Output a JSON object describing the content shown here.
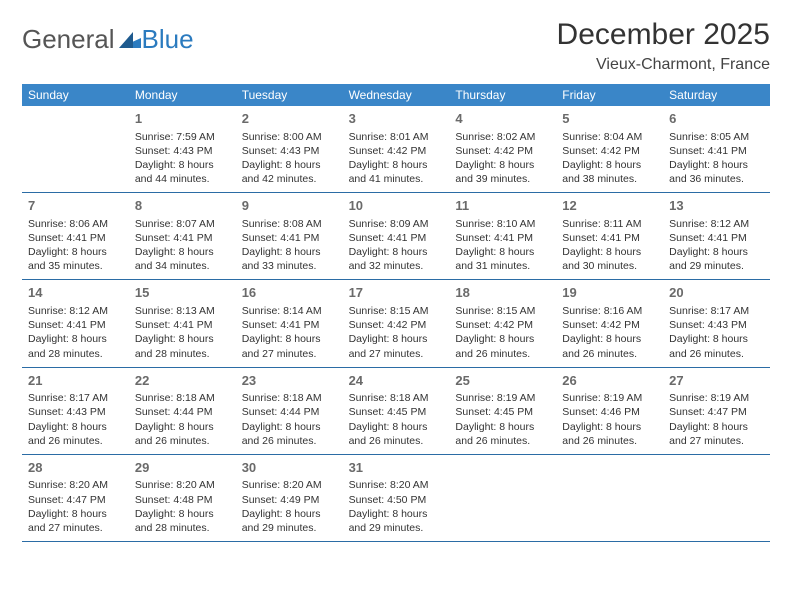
{
  "logo": {
    "text1": "General",
    "text2": "Blue"
  },
  "header": {
    "month": "December 2025",
    "location": "Vieux-Charmont, France"
  },
  "colors": {
    "header_bg": "#3a86c8",
    "header_text": "#ffffff",
    "week_border": "#2b6ca5",
    "daynum": "#6a6a6a",
    "body_text": "#333333",
    "logo_gray": "#555555",
    "logo_blue": "#2b7bbf"
  },
  "dayNames": [
    "Sunday",
    "Monday",
    "Tuesday",
    "Wednesday",
    "Thursday",
    "Friday",
    "Saturday"
  ],
  "weeks": [
    [
      null,
      {
        "n": "1",
        "l1": "Sunrise: 7:59 AM",
        "l2": "Sunset: 4:43 PM",
        "l3": "Daylight: 8 hours",
        "l4": "and 44 minutes."
      },
      {
        "n": "2",
        "l1": "Sunrise: 8:00 AM",
        "l2": "Sunset: 4:43 PM",
        "l3": "Daylight: 8 hours",
        "l4": "and 42 minutes."
      },
      {
        "n": "3",
        "l1": "Sunrise: 8:01 AM",
        "l2": "Sunset: 4:42 PM",
        "l3": "Daylight: 8 hours",
        "l4": "and 41 minutes."
      },
      {
        "n": "4",
        "l1": "Sunrise: 8:02 AM",
        "l2": "Sunset: 4:42 PM",
        "l3": "Daylight: 8 hours",
        "l4": "and 39 minutes."
      },
      {
        "n": "5",
        "l1": "Sunrise: 8:04 AM",
        "l2": "Sunset: 4:42 PM",
        "l3": "Daylight: 8 hours",
        "l4": "and 38 minutes."
      },
      {
        "n": "6",
        "l1": "Sunrise: 8:05 AM",
        "l2": "Sunset: 4:41 PM",
        "l3": "Daylight: 8 hours",
        "l4": "and 36 minutes."
      }
    ],
    [
      {
        "n": "7",
        "l1": "Sunrise: 8:06 AM",
        "l2": "Sunset: 4:41 PM",
        "l3": "Daylight: 8 hours",
        "l4": "and 35 minutes."
      },
      {
        "n": "8",
        "l1": "Sunrise: 8:07 AM",
        "l2": "Sunset: 4:41 PM",
        "l3": "Daylight: 8 hours",
        "l4": "and 34 minutes."
      },
      {
        "n": "9",
        "l1": "Sunrise: 8:08 AM",
        "l2": "Sunset: 4:41 PM",
        "l3": "Daylight: 8 hours",
        "l4": "and 33 minutes."
      },
      {
        "n": "10",
        "l1": "Sunrise: 8:09 AM",
        "l2": "Sunset: 4:41 PM",
        "l3": "Daylight: 8 hours",
        "l4": "and 32 minutes."
      },
      {
        "n": "11",
        "l1": "Sunrise: 8:10 AM",
        "l2": "Sunset: 4:41 PM",
        "l3": "Daylight: 8 hours",
        "l4": "and 31 minutes."
      },
      {
        "n": "12",
        "l1": "Sunrise: 8:11 AM",
        "l2": "Sunset: 4:41 PM",
        "l3": "Daylight: 8 hours",
        "l4": "and 30 minutes."
      },
      {
        "n": "13",
        "l1": "Sunrise: 8:12 AM",
        "l2": "Sunset: 4:41 PM",
        "l3": "Daylight: 8 hours",
        "l4": "and 29 minutes."
      }
    ],
    [
      {
        "n": "14",
        "l1": "Sunrise: 8:12 AM",
        "l2": "Sunset: 4:41 PM",
        "l3": "Daylight: 8 hours",
        "l4": "and 28 minutes."
      },
      {
        "n": "15",
        "l1": "Sunrise: 8:13 AM",
        "l2": "Sunset: 4:41 PM",
        "l3": "Daylight: 8 hours",
        "l4": "and 28 minutes."
      },
      {
        "n": "16",
        "l1": "Sunrise: 8:14 AM",
        "l2": "Sunset: 4:41 PM",
        "l3": "Daylight: 8 hours",
        "l4": "and 27 minutes."
      },
      {
        "n": "17",
        "l1": "Sunrise: 8:15 AM",
        "l2": "Sunset: 4:42 PM",
        "l3": "Daylight: 8 hours",
        "l4": "and 27 minutes."
      },
      {
        "n": "18",
        "l1": "Sunrise: 8:15 AM",
        "l2": "Sunset: 4:42 PM",
        "l3": "Daylight: 8 hours",
        "l4": "and 26 minutes."
      },
      {
        "n": "19",
        "l1": "Sunrise: 8:16 AM",
        "l2": "Sunset: 4:42 PM",
        "l3": "Daylight: 8 hours",
        "l4": "and 26 minutes."
      },
      {
        "n": "20",
        "l1": "Sunrise: 8:17 AM",
        "l2": "Sunset: 4:43 PM",
        "l3": "Daylight: 8 hours",
        "l4": "and 26 minutes."
      }
    ],
    [
      {
        "n": "21",
        "l1": "Sunrise: 8:17 AM",
        "l2": "Sunset: 4:43 PM",
        "l3": "Daylight: 8 hours",
        "l4": "and 26 minutes."
      },
      {
        "n": "22",
        "l1": "Sunrise: 8:18 AM",
        "l2": "Sunset: 4:44 PM",
        "l3": "Daylight: 8 hours",
        "l4": "and 26 minutes."
      },
      {
        "n": "23",
        "l1": "Sunrise: 8:18 AM",
        "l2": "Sunset: 4:44 PM",
        "l3": "Daylight: 8 hours",
        "l4": "and 26 minutes."
      },
      {
        "n": "24",
        "l1": "Sunrise: 8:18 AM",
        "l2": "Sunset: 4:45 PM",
        "l3": "Daylight: 8 hours",
        "l4": "and 26 minutes."
      },
      {
        "n": "25",
        "l1": "Sunrise: 8:19 AM",
        "l2": "Sunset: 4:45 PM",
        "l3": "Daylight: 8 hours",
        "l4": "and 26 minutes."
      },
      {
        "n": "26",
        "l1": "Sunrise: 8:19 AM",
        "l2": "Sunset: 4:46 PM",
        "l3": "Daylight: 8 hours",
        "l4": "and 26 minutes."
      },
      {
        "n": "27",
        "l1": "Sunrise: 8:19 AM",
        "l2": "Sunset: 4:47 PM",
        "l3": "Daylight: 8 hours",
        "l4": "and 27 minutes."
      }
    ],
    [
      {
        "n": "28",
        "l1": "Sunrise: 8:20 AM",
        "l2": "Sunset: 4:47 PM",
        "l3": "Daylight: 8 hours",
        "l4": "and 27 minutes."
      },
      {
        "n": "29",
        "l1": "Sunrise: 8:20 AM",
        "l2": "Sunset: 4:48 PM",
        "l3": "Daylight: 8 hours",
        "l4": "and 28 minutes."
      },
      {
        "n": "30",
        "l1": "Sunrise: 8:20 AM",
        "l2": "Sunset: 4:49 PM",
        "l3": "Daylight: 8 hours",
        "l4": "and 29 minutes."
      },
      {
        "n": "31",
        "l1": "Sunrise: 8:20 AM",
        "l2": "Sunset: 4:50 PM",
        "l3": "Daylight: 8 hours",
        "l4": "and 29 minutes."
      },
      null,
      null,
      null
    ]
  ]
}
